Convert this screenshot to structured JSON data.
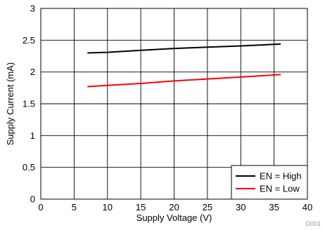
{
  "chart_data": {
    "type": "line",
    "xlabel": "Supply Voltage (V)",
    "ylabel": "Supply Current (mA)",
    "xlim": [
      0,
      40
    ],
    "ylim": [
      0,
      3
    ],
    "xticks": [
      0,
      5,
      10,
      15,
      20,
      25,
      30,
      35,
      40
    ],
    "yticks": [
      0,
      0.5,
      1,
      1.5,
      2,
      2.5,
      3
    ],
    "grid": true,
    "legend_position": "bottom-right",
    "series": [
      {
        "name": "EN = High",
        "color": "#000000",
        "points": [
          [
            7,
            2.3
          ],
          [
            10,
            2.31
          ],
          [
            15,
            2.34
          ],
          [
            20,
            2.37
          ],
          [
            25,
            2.39
          ],
          [
            30,
            2.41
          ],
          [
            36,
            2.44
          ]
        ]
      },
      {
        "name": "EN = Low",
        "color": "#ff0000",
        "points": [
          [
            7,
            1.77
          ],
          [
            10,
            1.79
          ],
          [
            15,
            1.82
          ],
          [
            20,
            1.86
          ],
          [
            25,
            1.89
          ],
          [
            30,
            1.92
          ],
          [
            36,
            1.96
          ]
        ]
      }
    ],
    "footnote": "D001"
  }
}
